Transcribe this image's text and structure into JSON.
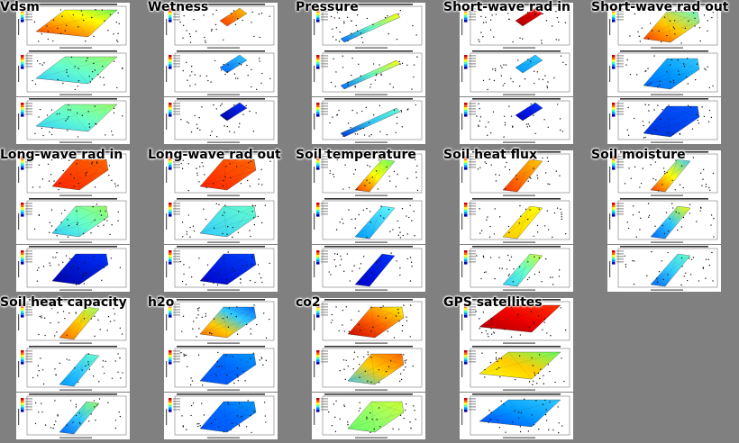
{
  "page": {
    "background": "#808080"
  },
  "tiles": [
    {
      "label": "Vdsm",
      "shape": "rhombus",
      "grid": [
        0,
        0
      ],
      "panels": 3,
      "colors": [
        [
          "#ff3300",
          "#ff9900",
          "#ffff00",
          "#66ff66"
        ],
        [
          "#33ccff",
          "#66ffcc",
          "#99ff66"
        ],
        [
          "#33ccff",
          "#66ffcc",
          "#99ff66"
        ]
      ]
    },
    {
      "label": "Wetness",
      "shape": "streak",
      "grid": [
        0,
        1
      ],
      "panels": 3,
      "colors": [
        [
          "#ff3300",
          "#ffcc00"
        ],
        [
          "#0066ff",
          "#33ccff"
        ],
        [
          "#0000aa",
          "#0033ff"
        ]
      ]
    },
    {
      "label": "Pressure",
      "shape": "line",
      "grid": [
        0,
        2
      ],
      "panels": 3,
      "colors": [
        [
          "#0066ff",
          "#66ffcc",
          "#ffff00"
        ],
        [
          "#0066ff",
          "#66ffcc",
          "#ffff00"
        ],
        [
          "#0033cc",
          "#33ccff",
          "#66ffcc"
        ]
      ]
    },
    {
      "label": "Short-wave rad in",
      "shape": "streak",
      "grid": [
        0,
        3
      ],
      "panels": 3,
      "colors": [
        [
          "#aa0000",
          "#ff0000"
        ],
        [
          "#0099ff",
          "#33ccff"
        ],
        [
          "#0000cc",
          "#0033ff"
        ]
      ]
    },
    {
      "label": "Short-wave rad out",
      "shape": "wedge",
      "grid": [
        0,
        4
      ],
      "panels": 3,
      "colors": [
        [
          "#ff3300",
          "#ffcc00",
          "#66ffcc"
        ],
        [
          "#0066ff",
          "#0099ff",
          "#33ccff"
        ],
        [
          "#0033dd",
          "#0055ff"
        ]
      ]
    },
    {
      "label": "Long-wave rad in",
      "shape": "wedge",
      "grid": [
        1,
        0
      ],
      "panels": 3,
      "colors": [
        [
          "#ff2200",
          "#ff6600"
        ],
        [
          "#33ccff",
          "#66ffcc",
          "#99ff66"
        ],
        [
          "#0000aa",
          "#0033ff"
        ]
      ]
    },
    {
      "label": "Long-wave rad out",
      "shape": "wedge",
      "grid": [
        1,
        1
      ],
      "panels": 3,
      "colors": [
        [
          "#ff2200",
          "#ff6600"
        ],
        [
          "#33ccff",
          "#66ffcc"
        ],
        [
          "#0000cc",
          "#0044ff"
        ]
      ]
    },
    {
      "label": "Soil temperature",
      "shape": "sliver",
      "grid": [
        1,
        2
      ],
      "panels": 3,
      "colors": [
        [
          "#ff3300",
          "#ffff00",
          "#66ff66"
        ],
        [
          "#0099ff",
          "#33ccff",
          "#66ffff"
        ],
        [
          "#0000cc",
          "#0033ff"
        ]
      ]
    },
    {
      "label": "Soil heat flux",
      "shape": "sliver",
      "grid": [
        1,
        3
      ],
      "panels": 3,
      "colors": [
        [
          "#ff3300",
          "#ffcc00"
        ],
        [
          "#ffcc00",
          "#ffff00"
        ],
        [
          "#33ccff",
          "#66ffcc",
          "#ccff33"
        ]
      ]
    },
    {
      "label": "Soil moisture",
      "shape": "sliver",
      "grid": [
        1,
        4
      ],
      "panels": 3,
      "colors": [
        [
          "#ff3300",
          "#ffff00",
          "#33ccff"
        ],
        [
          "#0066ff",
          "#33ccff",
          "#ffff00"
        ],
        [
          "#0066ff",
          "#33ccff",
          "#66ffcc"
        ]
      ]
    },
    {
      "label": "Soil heat capacity",
      "shape": "sliver",
      "grid": [
        2,
        0
      ],
      "panels": 3,
      "colors": [
        [
          "#ff6600",
          "#ffcc00",
          "#99ff66"
        ],
        [
          "#0099ff",
          "#33ccff",
          "#66ffcc"
        ],
        [
          "#0066ff",
          "#33ccff",
          "#99ff66"
        ]
      ]
    },
    {
      "label": "h2o",
      "shape": "wedge",
      "grid": [
        2,
        1
      ],
      "panels": 3,
      "colors": [
        [
          "#ff6600",
          "#ffcc00",
          "#33ccff",
          "#0066ff"
        ],
        [
          "#0055ff",
          "#0066ff",
          "#0099ff"
        ],
        [
          "#0055ff",
          "#0066ff",
          "#0099ff"
        ]
      ]
    },
    {
      "label": "co2",
      "shape": "wedge",
      "grid": [
        2,
        2
      ],
      "panels": 3,
      "colors": [
        [
          "#cc0000",
          "#ff6600",
          "#ffff00"
        ],
        [
          "#33ccff",
          "#ffcc00",
          "#ff6600"
        ],
        [
          "#66ff66",
          "#99ff66",
          "#ccff33"
        ]
      ]
    },
    {
      "label": "GPS satellites",
      "shape": "rhombus",
      "grid": [
        2,
        3
      ],
      "panels": 3,
      "colors": [
        [
          "#aa0000",
          "#ee0000",
          "#ff3300"
        ],
        [
          "#ffff00",
          "#ffcc00",
          "#66ff66"
        ],
        [
          "#0044ff",
          "#0099ff",
          "#33ccff"
        ]
      ]
    }
  ]
}
